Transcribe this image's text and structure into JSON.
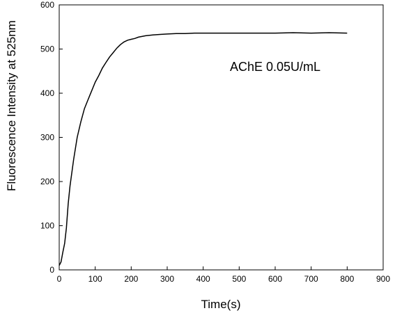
{
  "chart_data": {
    "type": "line",
    "xlabel": "Time(s)",
    "ylabel": "Fluorescence Intensity at 525nm",
    "xlim": [
      0,
      900
    ],
    "ylim": [
      0,
      600
    ],
    "xticks": [
      0,
      100,
      200,
      300,
      400,
      500,
      600,
      700,
      800,
      900
    ],
    "yticks": [
      0,
      100,
      200,
      300,
      400,
      500,
      600
    ],
    "grid": false,
    "annotation": "AChE 0.05U/mL",
    "series": [
      {
        "color": "#000000",
        "x": [
          0,
          5,
          10,
          15,
          20,
          25,
          30,
          40,
          50,
          60,
          70,
          80,
          90,
          100,
          110,
          120,
          130,
          140,
          150,
          160,
          170,
          180,
          190,
          200,
          210,
          220,
          240,
          260,
          280,
          300,
          325,
          350,
          375,
          400,
          450,
          500,
          550,
          600,
          650,
          700,
          750,
          800
        ],
        "y": [
          10,
          18,
          40,
          60,
          95,
          150,
          190,
          250,
          300,
          335,
          365,
          385,
          405,
          425,
          440,
          457,
          470,
          482,
          492,
          502,
          510,
          516,
          520,
          522,
          524,
          527,
          530,
          532,
          533,
          534,
          535,
          535,
          536,
          536,
          536,
          536,
          536,
          536,
          537,
          536,
          537,
          536
        ]
      }
    ]
  }
}
